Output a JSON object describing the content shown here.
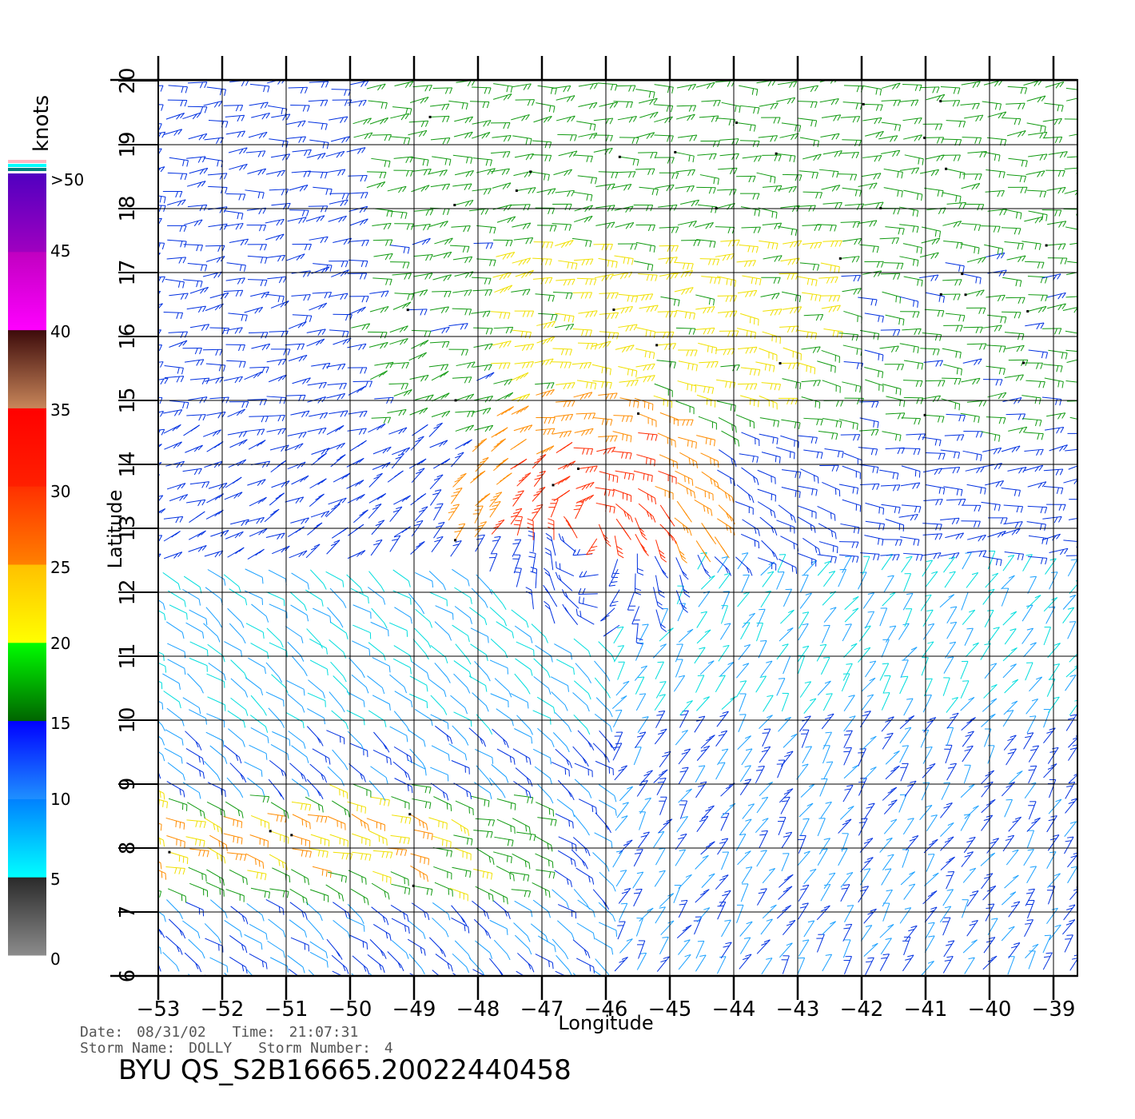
{
  "map": {
    "x_axis": {
      "label": "Longitude",
      "range": [
        -53,
        -39
      ],
      "ticks": [
        -53,
        -52,
        -51,
        -50,
        -49,
        -48,
        -47,
        -46,
        -45,
        -44,
        -43,
        -42,
        -41,
        -40,
        -39
      ]
    },
    "y_axis": {
      "label": "Latitude",
      "range": [
        6,
        20
      ],
      "ticks": [
        6,
        7,
        8,
        9,
        10,
        11,
        12,
        13,
        14,
        15,
        16,
        17,
        18,
        19,
        20
      ]
    },
    "grid": true,
    "storm_center": {
      "lon": -46.3,
      "lat": 13.1
    }
  },
  "colorbar": {
    "title": "knots",
    "labels": [
      "0",
      "5",
      "10",
      "15",
      "20",
      "25",
      "30",
      "35",
      "40",
      "45",
      ">50"
    ],
    "bands": [
      {
        "from": 0,
        "to": 5,
        "colors": [
          "#8c8c8c",
          "#2a2a2a"
        ]
      },
      {
        "from": 5,
        "to": 10,
        "colors": [
          "#00ffff",
          "#0080ff"
        ]
      },
      {
        "from": 10,
        "to": 15,
        "colors": [
          "#1e90ff",
          "#0000ff"
        ]
      },
      {
        "from": 15,
        "to": 20,
        "colors": [
          "#006400",
          "#00ff00"
        ]
      },
      {
        "from": 20,
        "to": 25,
        "colors": [
          "#ffff00",
          "#ffc000"
        ]
      },
      {
        "from": 25,
        "to": 30,
        "colors": [
          "#ff8000",
          "#ff3000"
        ]
      },
      {
        "from": 30,
        "to": 35,
        "colors": [
          "#ff2000",
          "#ff0000"
        ]
      },
      {
        "from": 35,
        "to": 40,
        "colors": [
          "#c8865a",
          "#3c0a0a"
        ]
      },
      {
        "from": 40,
        "to": 45,
        "colors": [
          "#ff00ff",
          "#c000c0"
        ]
      },
      {
        "from": 45,
        "to": 50,
        "colors": [
          "#a000c0",
          "#5000c0"
        ]
      }
    ],
    "top_swatches": [
      "#ffb6c1",
      "#00ffff",
      "#008080"
    ]
  },
  "info": {
    "date_label": "Date:",
    "date": "08/31/02",
    "time_label": "Time:",
    "time": "21:07:31",
    "storm_name_label": "Storm Name:",
    "storm_name": "DOLLY",
    "storm_number_label": "Storm Number:",
    "storm_number": "4",
    "identifier": "BYU QS_S2B16665.20022440458"
  }
}
